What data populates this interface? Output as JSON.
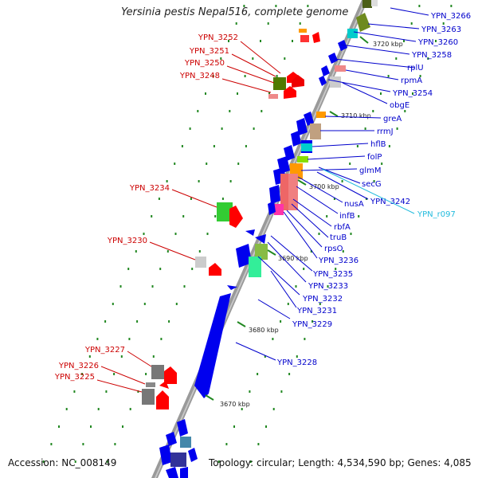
{
  "title": "Yersinia pestis Nepal516, complete genome",
  "accession": "Accession: NC_008149",
  "topology": "Topology: circular; Length: 4,534,590 bp; Genes: 4,085",
  "colors": {
    "backbone": "#999999",
    "left_label": "#cc0000",
    "right_label": "#0000cc",
    "rna_label": "#33ccee",
    "tick": "#228822"
  },
  "scale_ticks": [
    "3720 kbp",
    "3710 kbp",
    "3700 kbp",
    "3690 kbp",
    "3680 kbp",
    "3670 kbp"
  ],
  "left_labels": [
    "YPN_3252",
    "YPN_3251",
    "YPN_3250",
    "YPN_3248",
    "YPN_3234",
    "YPN_3230",
    "YPN_3227",
    "YPN_3226",
    "YPN_3225"
  ],
  "right_labels": [
    "YPN_3266",
    "YPN_3263",
    "YPN_3260",
    "YPN_3258",
    "rplU",
    "rpmA",
    "YPN_3254",
    "obgE",
    "greA",
    "rrmJ",
    "hflB",
    "folP",
    "glmM",
    "secG",
    "YPN_3242",
    "nusA",
    "infB",
    "rbfA",
    "truB",
    "rpsO",
    "YPN_3236",
    "YPN_3235",
    "YPN_3233",
    "YPN_3232",
    "YPN_3231",
    "YPN_3229",
    "YPN_3228"
  ],
  "rna_labels": [
    "YPN_r097"
  ]
}
